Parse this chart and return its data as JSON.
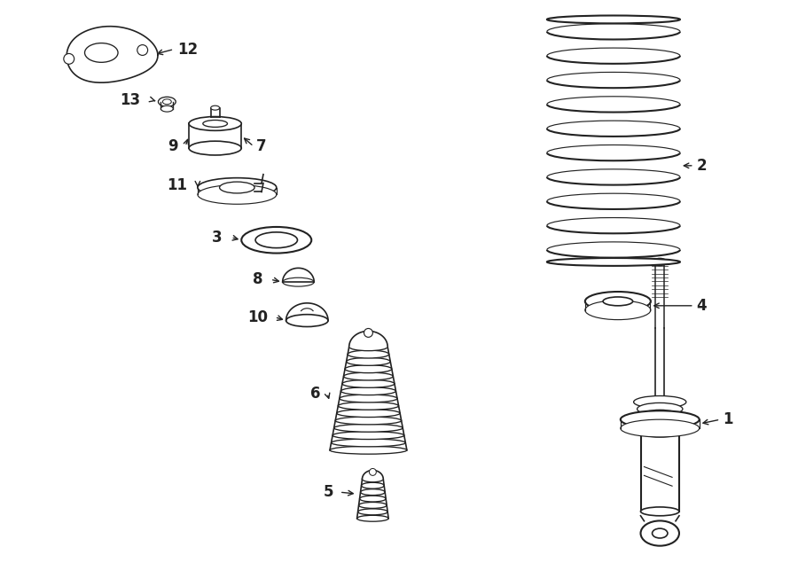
{
  "bg_color": "#ffffff",
  "line_color": "#222222",
  "figsize": [
    9.0,
    6.61
  ],
  "dpi": 100
}
